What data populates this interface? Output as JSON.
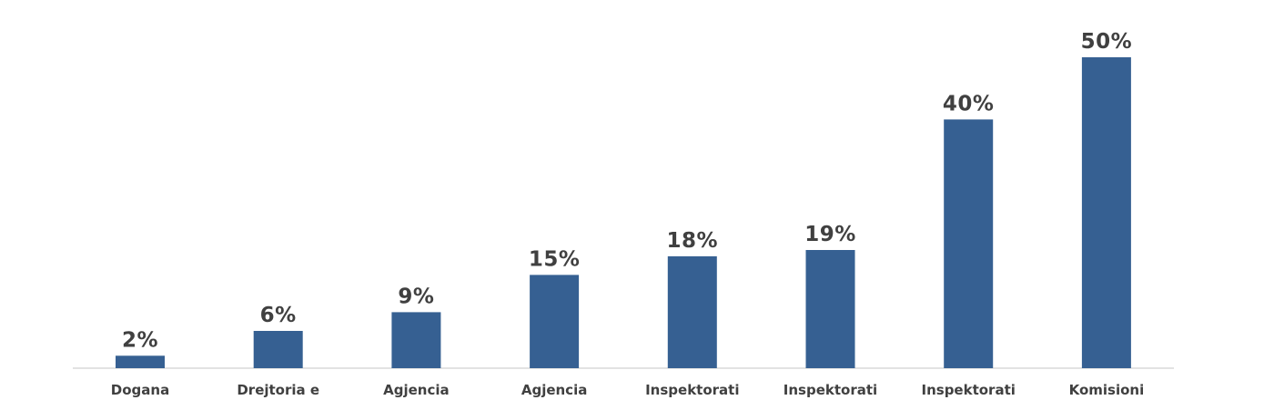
{
  "chart_data": {
    "type": "bar",
    "categories": [
      "Dogana",
      "Drejtoria e",
      "Agjencia",
      "Agjencia",
      "Inspektorati",
      "Inspektorati",
      "Inspektorati",
      "Komisioni"
    ],
    "values": [
      2,
      6,
      9,
      15,
      18,
      19,
      40,
      50
    ],
    "value_labels": [
      "2%",
      "6%",
      "9%",
      "15%",
      "18%",
      "19%",
      "40%",
      "50%"
    ],
    "unit": "%",
    "title": "",
    "xlabel": "",
    "ylabel": "",
    "ylim": [
      0,
      50
    ],
    "grid": false,
    "legend": "none",
    "colors": {
      "bar": "#366092",
      "text": "#404040",
      "axis": "#d9d9d9"
    }
  }
}
